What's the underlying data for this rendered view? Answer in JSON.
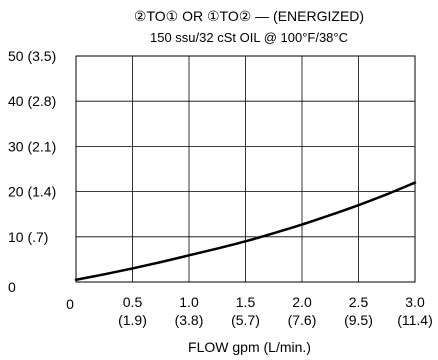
{
  "chart_data": {
    "type": "line",
    "title": "②TO① OR ①TO② — (ENERGIZED)",
    "subtitle": "150 ssu/32 cSt OIL @ 100°F/38°C",
    "xlabel": "FLOW gpm (L/min.)",
    "ylabel": "",
    "xlim": [
      0,
      3.0
    ],
    "ylim": [
      0,
      50
    ],
    "grid": true,
    "x_ticks": [
      {
        "value": 0,
        "label": "0",
        "sub": ""
      },
      {
        "value": 0.5,
        "label": "0.5",
        "sub": "(1.9)"
      },
      {
        "value": 1.0,
        "label": "1.0",
        "sub": "(3.8)"
      },
      {
        "value": 1.5,
        "label": "1.5",
        "sub": "(5.7)"
      },
      {
        "value": 2.0,
        "label": "2.0",
        "sub": "(7.6)"
      },
      {
        "value": 2.5,
        "label": "2.5",
        "sub": "(9.5)"
      },
      {
        "value": 3.0,
        "label": "3.0",
        "sub": "(11.4)"
      }
    ],
    "y_ticks": [
      {
        "value": 0,
        "label": "0"
      },
      {
        "value": 10,
        "label": "10 (.7)"
      },
      {
        "value": 20,
        "label": "20 (1.4)"
      },
      {
        "value": 30,
        "label": "30 (2.1)"
      },
      {
        "value": 40,
        "label": "40 (2.8)"
      },
      {
        "value": 50,
        "label": "50 (3.5)"
      }
    ],
    "series": [
      {
        "x": [
          0,
          0.25,
          0.5,
          0.75,
          1.0,
          1.25,
          1.5,
          1.75,
          2.0,
          2.25,
          2.5,
          2.75,
          3.0
        ],
        "y": [
          0.5,
          1.7,
          3.0,
          4.4,
          5.9,
          7.4,
          9.0,
          10.8,
          12.7,
          14.8,
          17.0,
          19.4,
          22.0
        ],
        "color": "#000000"
      }
    ]
  }
}
